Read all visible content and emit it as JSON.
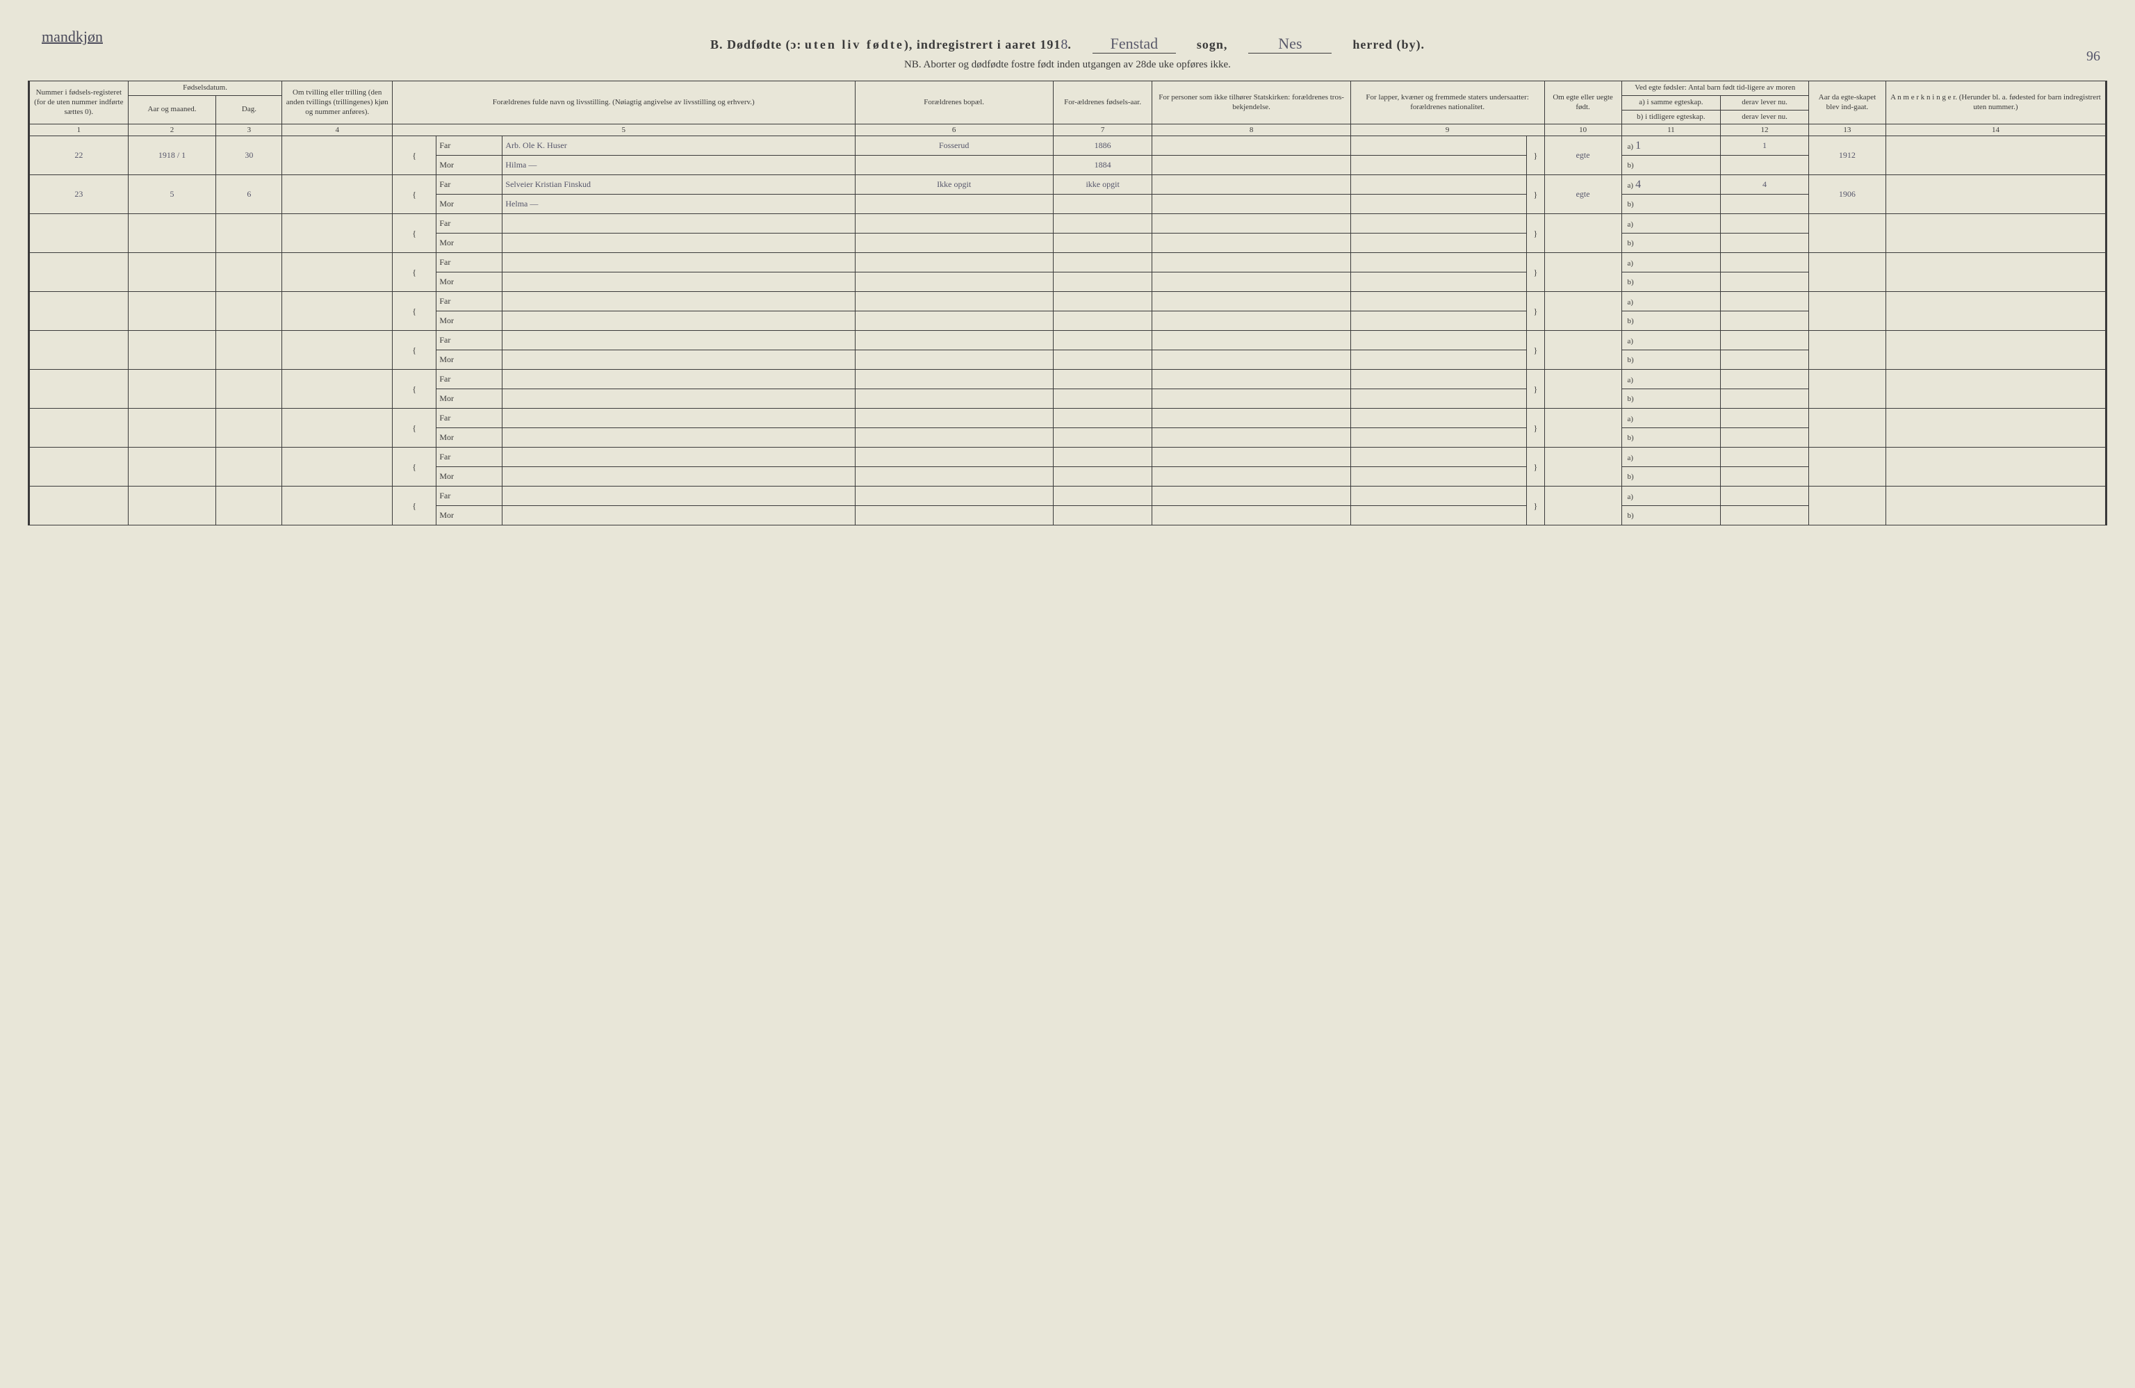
{
  "corner_label": "mandkjøn",
  "page_number": "96",
  "title": {
    "prefix": "B. Dødfødte (ɔ:",
    "spaced": "uten liv fødte",
    "suffix": "), indregistrert i aaret 191",
    "year_digit": "8",
    "period": ".",
    "sogn_value": "Fenstad",
    "sogn_label": "sogn,",
    "herred_value": "Nes",
    "herred_label": "herred (by)."
  },
  "subtitle": "NB.  Aborter og dødfødte fostre født inden utgangen av 28de uke opføres ikke.",
  "headers": {
    "c1": "Nummer i fødsels-registeret (for de uten nummer indførte sættes 0).",
    "c23_top": "Fødselsdatum.",
    "c2": "Aar og maaned.",
    "c3": "Dag.",
    "c4": "Om tvilling eller trilling (den anden tvillings (trillingenes) kjøn og nummer anføres).",
    "c5": "Forældrenes fulde navn og livsstilling. (Nøiagtig angivelse av livsstilling og erhverv.)",
    "c6": "Forældrenes bopæl.",
    "c7": "For-ældrenes fødsels-aar.",
    "c8": "For personer som ikke tilhører Statskirken: forældrenes tros-bekjendelse.",
    "c9": "For lapper, kvæner og fremmede staters undersaatter: forældrenes nationalitet.",
    "c10": "Om egte eller uegte født.",
    "c1112_top": "Ved egte fødsler: Antal barn født tid-ligere av moren",
    "c11a": "a) i samme egteskap.",
    "c11b": "b) i tidligere egteskap.",
    "c12a": "derav lever nu.",
    "c12b": "derav lever nu.",
    "c13": "Aar da egte-skapet blev ind-gaat.",
    "c14": "A n m e r k n i n g e r. (Herunder bl. a. fødested for barn indregistrert uten nummer.)"
  },
  "colnums": [
    "1",
    "2",
    "3",
    "4",
    "5",
    "6",
    "7",
    "8",
    "9",
    "10",
    "11",
    "12",
    "13",
    "14"
  ],
  "parent_labels": {
    "far": "Far",
    "mor": "Mor"
  },
  "ab_labels": {
    "a": "a)",
    "b": "b)"
  },
  "entries": [
    {
      "num": "22",
      "year_month": "1918 / 1",
      "day": "30",
      "far_name": "Arb. Ole K. Huser",
      "mor_name": "Hilma       —",
      "bopael": "Fosserud",
      "far_aar": "1886",
      "mor_aar": "1884",
      "egte": "egte",
      "a_val": "1",
      "a_lever": "1",
      "aar_egteskap": "1912"
    },
    {
      "num": "23",
      "year_month": "5",
      "day": "6",
      "far_name": "Selveier Kristian Finskud",
      "mor_name": "Helma       —",
      "bopael": "Ikke opgit",
      "far_aar": "ikke opgit",
      "mor_aar": "",
      "egte": "egte",
      "a_val": "4",
      "a_lever": "4",
      "aar_egteskap": "1906"
    }
  ],
  "empty_rows": 8,
  "colors": {
    "paper": "#e8e6d8",
    "ink": "#3a3a3a",
    "handwriting": "#55556a"
  }
}
